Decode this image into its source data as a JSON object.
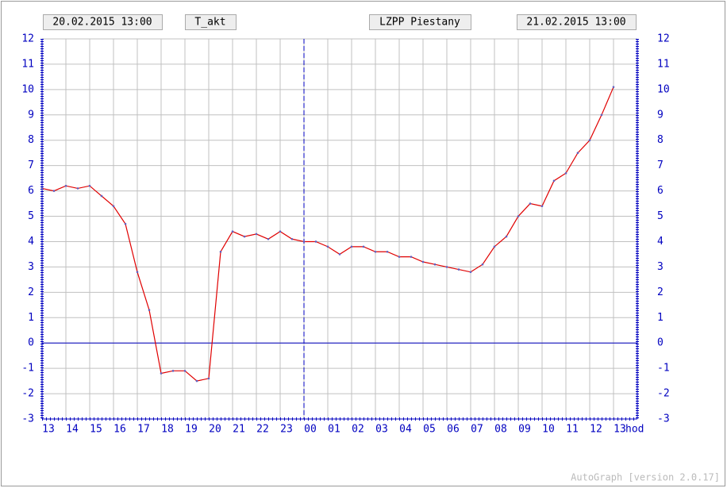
{
  "chart_data": {
    "type": "line",
    "header": {
      "start": "20.02.2015 13:00",
      "station": "LZPP Piestany",
      "end": "21.02.2015 13:00"
    },
    "x_unit": "hod",
    "footer": "AutoGraph [version 2.0.17]",
    "x": [
      0,
      0.5,
      1,
      1.5,
      2,
      2.5,
      3,
      3.5,
      4,
      4.5,
      5,
      5.5,
      6,
      6.5,
      7,
      7.5,
      8,
      8.5,
      9,
      9.5,
      10,
      10.5,
      11,
      11.5,
      12,
      12.5,
      13,
      13.5,
      14,
      14.5,
      15,
      15.5,
      16,
      16.5,
      17,
      17.5,
      18,
      18.5,
      19,
      19.5,
      20,
      20.5,
      21,
      21.5,
      22,
      22.5,
      23,
      23.5,
      24
    ],
    "series": [
      {
        "name": "T_akt",
        "color": "#e00000",
        "marker_color": "#6060c0",
        "values": [
          6.1,
          6.0,
          6.2,
          6.1,
          6.2,
          5.8,
          5.4,
          4.7,
          2.8,
          1.3,
          -1.2,
          -1.1,
          -1.1,
          -1.5,
          -1.4,
          3.6,
          4.4,
          4.2,
          4.3,
          4.1,
          4.4,
          4.1,
          4.0,
          4.0,
          3.8,
          3.5,
          3.8,
          3.8,
          3.6,
          3.6,
          3.4,
          3.4,
          3.2,
          3.1,
          3.0,
          2.9,
          2.8,
          3.1,
          3.8,
          4.2,
          5.0,
          5.5,
          5.4,
          6.4,
          6.7,
          7.5,
          8.0,
          9.0,
          10.1
        ]
      }
    ],
    "xlim": [
      0,
      25
    ],
    "xticks": [
      {
        "value": 0,
        "label": "13"
      },
      {
        "value": 1,
        "label": "14"
      },
      {
        "value": 2,
        "label": "15"
      },
      {
        "value": 3,
        "label": "16"
      },
      {
        "value": 4,
        "label": "17"
      },
      {
        "value": 5,
        "label": "18"
      },
      {
        "value": 6,
        "label": "19"
      },
      {
        "value": 7,
        "label": "20"
      },
      {
        "value": 8,
        "label": "21"
      },
      {
        "value": 9,
        "label": "22"
      },
      {
        "value": 10,
        "label": "23"
      },
      {
        "value": 11,
        "label": "00"
      },
      {
        "value": 12,
        "label": "01"
      },
      {
        "value": 13,
        "label": "02"
      },
      {
        "value": 14,
        "label": "03"
      },
      {
        "value": 15,
        "label": "04"
      },
      {
        "value": 16,
        "label": "05"
      },
      {
        "value": 17,
        "label": "06"
      },
      {
        "value": 18,
        "label": "07"
      },
      {
        "value": 19,
        "label": "08"
      },
      {
        "value": 20,
        "label": "09"
      },
      {
        "value": 21,
        "label": "10"
      },
      {
        "value": 22,
        "label": "11"
      },
      {
        "value": 23,
        "label": "12"
      },
      {
        "value": 24,
        "label": "13"
      }
    ],
    "ylim": [
      -3,
      12
    ],
    "yticks": [
      -3,
      -2,
      -1,
      0,
      1,
      2,
      3,
      4,
      5,
      6,
      7,
      8,
      9,
      10,
      11,
      12
    ],
    "grid": true,
    "zero_line_color": "#0000c0",
    "axis_color": "#0000c0",
    "midnight_x": 11
  }
}
